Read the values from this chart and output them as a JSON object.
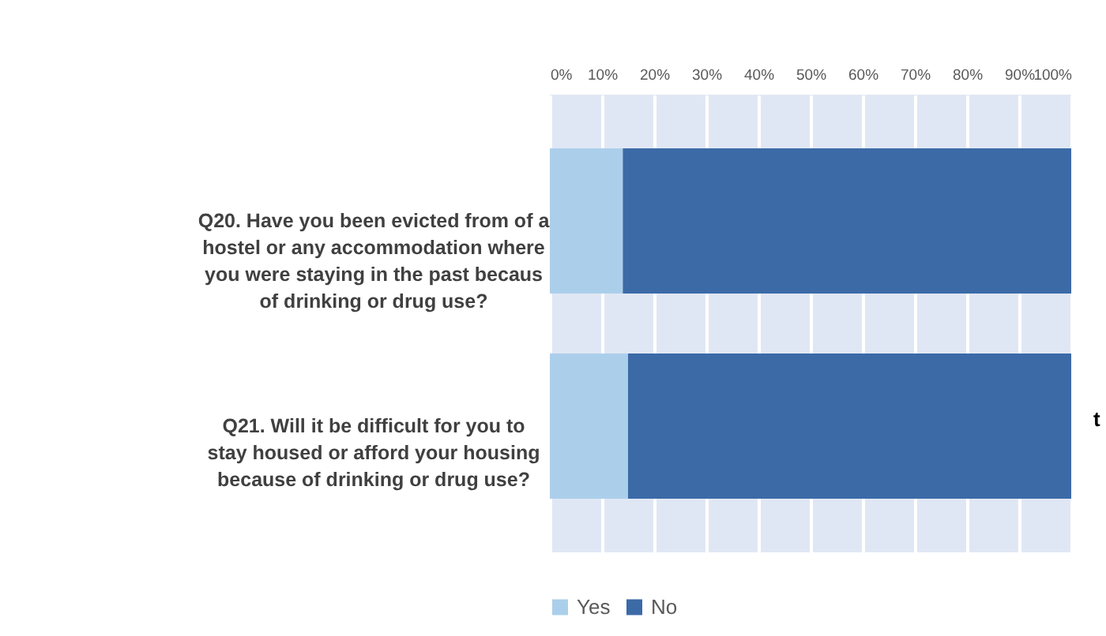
{
  "chart_data": {
    "type": "bar",
    "orientation": "horizontal",
    "stacked": true,
    "categories": [
      "Q20. Have you been evicted from of a hostel or any accommodation where you were staying in the past becaus of drinking or drug use?",
      "Q21. Will it be difficult for you to stay housed or afford your housing because of drinking or drug use?"
    ],
    "series": [
      {
        "name": "Yes",
        "color": "#abcfeb",
        "values": [
          14,
          15
        ]
      },
      {
        "name": "No",
        "color": "#3b6aa7",
        "values": [
          86,
          85
        ]
      }
    ],
    "xlim": [
      0,
      100
    ],
    "xticks": [
      {
        "value": 0,
        "label": "0%"
      },
      {
        "value": 10,
        "label": "10%"
      },
      {
        "value": 20,
        "label": "20%"
      },
      {
        "value": 30,
        "label": "30%"
      },
      {
        "value": 40,
        "label": "40%"
      },
      {
        "value": 50,
        "label": "50%"
      },
      {
        "value": 60,
        "label": "60%"
      },
      {
        "value": 70,
        "label": "70%"
      },
      {
        "value": 80,
        "label": "80%"
      },
      {
        "value": 90,
        "label": "90%"
      },
      {
        "value": 100,
        "label": "100%"
      }
    ],
    "grid": "x",
    "legend": "bottom",
    "annotations": [
      "t"
    ]
  }
}
